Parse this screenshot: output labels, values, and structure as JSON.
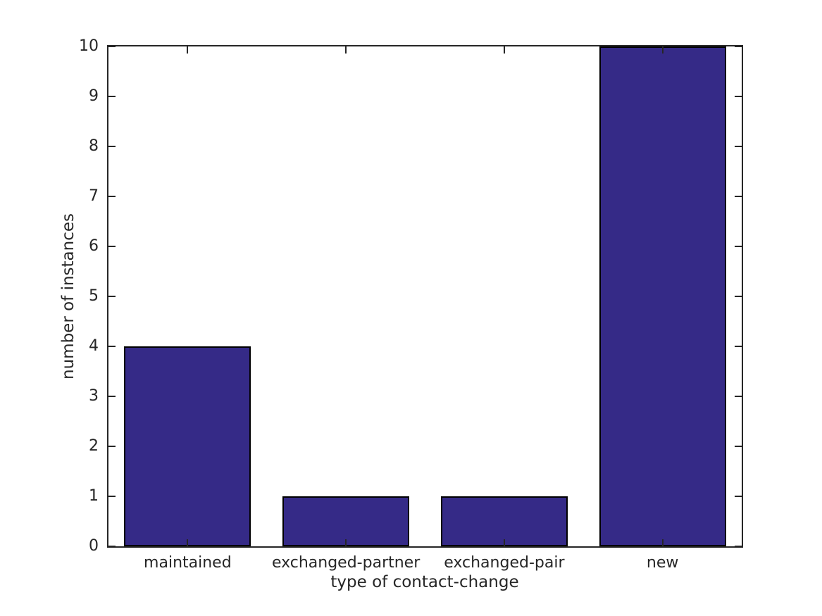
{
  "chart_data": {
    "type": "bar",
    "categories": [
      "maintained",
      "exchanged-partner",
      "exchanged-pair",
      "new"
    ],
    "values": [
      4,
      1,
      1,
      10
    ],
    "title": "",
    "xlabel": "type of contact-change",
    "ylabel": "number of instances",
    "ylim": [
      0,
      10
    ],
    "yticks": [
      0,
      1,
      2,
      3,
      4,
      5,
      6,
      7,
      8,
      9,
      10
    ],
    "bar_width_fraction": 0.8,
    "bar_color": "#352A87",
    "bar_edge_color": "#000000",
    "axis_color": "#262626",
    "text_color": "#262626",
    "background_color": "#FFFFFF",
    "grid": false,
    "box": true,
    "tick_direction": "in",
    "legend": "none"
  }
}
